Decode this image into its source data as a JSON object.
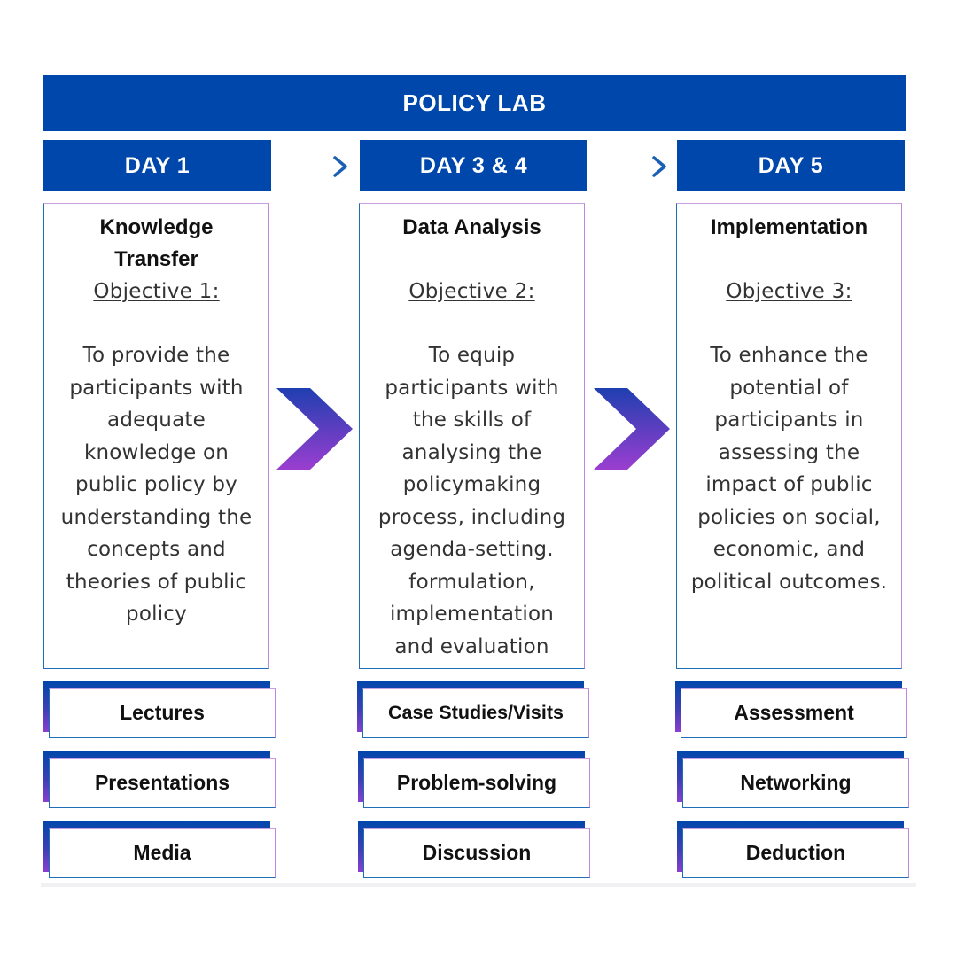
{
  "title": "POLICY LAB",
  "columns": [
    {
      "day": "DAY 1",
      "heading_lines": [
        "Knowledge",
        "Transfer"
      ],
      "objective": "Objective 1:",
      "description_lines": [
        "To provide the",
        "participants with",
        "adequate",
        "knowledge on",
        "public policy by",
        "understanding the",
        "concepts and",
        "theories of public",
        "policy"
      ],
      "activities": [
        "Lectures",
        "Presentations",
        "Media"
      ]
    },
    {
      "day": "DAY 3 & 4",
      "heading_lines": [
        "Data Analysis"
      ],
      "objective": "Objective 2:",
      "description_lines": [
        "To equip",
        "participants with",
        "the skills of",
        "analysing the",
        "policymaking",
        "process, including",
        "agenda-setting.",
        "formulation,",
        "implementation",
        "and evaluation"
      ],
      "activities": [
        "Case Studies/Visits",
        "Problem-solving",
        "Discussion"
      ]
    },
    {
      "day": "DAY 5",
      "heading_lines": [
        "Implementation"
      ],
      "objective": "Objective 3:",
      "description_lines": [
        "To enhance the",
        "potential of",
        "participants in",
        "assessing the",
        "impact of public",
        "policies on social,",
        "economic, and",
        "political outcomes."
      ],
      "activities": [
        "Assessment",
        "Networking",
        "Deduction"
      ]
    }
  ],
  "colors": {
    "primary_blue": "#0047AB",
    "accent_purple": "#8b3fcf",
    "arrow_cyan": "#33c3e0"
  }
}
